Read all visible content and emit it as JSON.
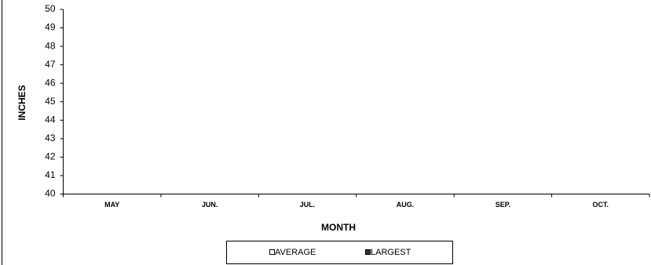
{
  "chart_data": {
    "type": "bar",
    "x_label": "MONTH",
    "y_label": "INCHES",
    "categories": [
      "MAY",
      "JUN.",
      "JUL.",
      "AUG.",
      "SEP.",
      "OCT."
    ],
    "series": [
      {
        "name": "AVERAGE",
        "color": "#ffffff",
        "values": [
          null,
          null,
          null,
          null,
          null,
          null
        ]
      },
      {
        "name": "LARGEST",
        "color": "#333333",
        "values": [
          null,
          null,
          null,
          null,
          null,
          null
        ]
      }
    ],
    "ylim": [
      40,
      50
    ],
    "yticks": [
      40,
      41,
      42,
      43,
      44,
      45,
      46,
      47,
      48,
      49,
      50
    ],
    "legend": "bottom"
  }
}
